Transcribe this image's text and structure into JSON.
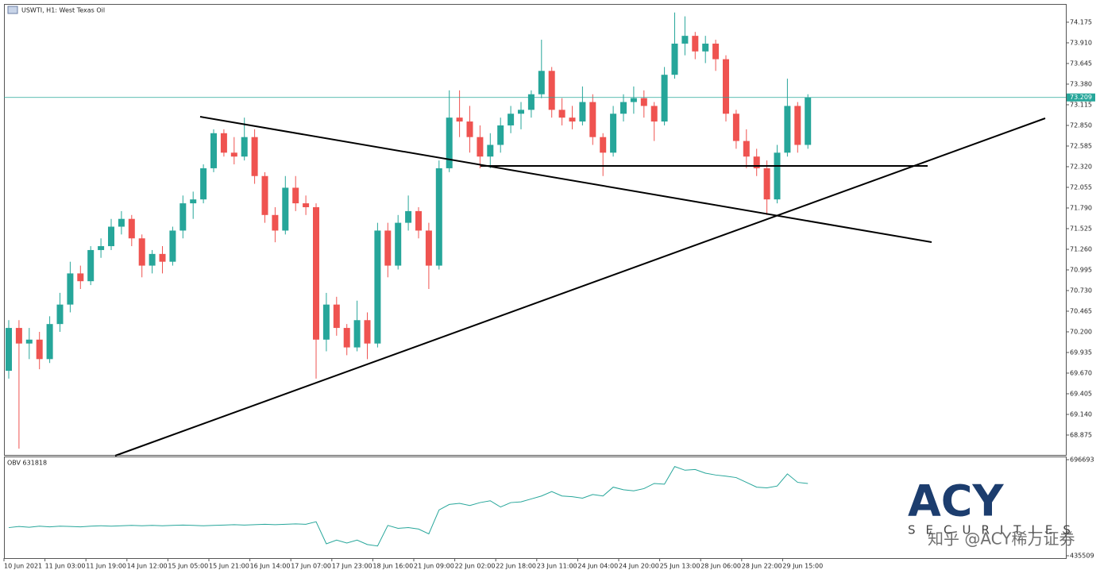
{
  "chart_data": {
    "type": "candlestick",
    "title": "USWTI, H1:  West Texas Oil",
    "categories": [
      "10 Jun 2021",
      null,
      null,
      null,
      "11 Jun 03:00",
      null,
      null,
      null,
      "11 Jun 19:00",
      null,
      null,
      null,
      "14 Jun 12:00",
      null,
      null,
      null,
      "15 Jun 05:00",
      null,
      null,
      null,
      "15 Jun 21:00",
      null,
      null,
      null,
      "16 Jun 14:00",
      null,
      null,
      null,
      "17 Jun 07:00",
      null,
      null,
      null,
      "17 Jun 23:00",
      null,
      null,
      null,
      "18 Jun 16:00",
      null,
      null,
      null,
      "21 Jun 09:00",
      null,
      null,
      null,
      "22 Jun 02:00",
      null,
      null,
      null,
      "22 Jun 18:00",
      null,
      null,
      null,
      "23 Jun 11:00",
      null,
      null,
      null,
      "24 Jun 04:00",
      null,
      null,
      null,
      "24 Jun 20:00",
      null,
      null,
      null,
      "25 Jun 13:00",
      null,
      null,
      null,
      "28 Jun 06:00",
      null,
      null,
      null,
      "28 Jun 22:00",
      null,
      null,
      null,
      "29 Jun 15:00",
      null,
      null
    ],
    "open": [
      69.7,
      70.25,
      70.05,
      70.1,
      69.85,
      70.3,
      70.55,
      70.95,
      70.85,
      71.25,
      71.3,
      71.55,
      71.65,
      71.4,
      71.05,
      71.2,
      71.1,
      71.5,
      71.85,
      71.9,
      72.3,
      72.75,
      72.5,
      72.45,
      72.7,
      72.2,
      71.7,
      71.5,
      72.05,
      71.85,
      71.8,
      70.1,
      70.55,
      70.25,
      70.0,
      70.35,
      70.05,
      71.5,
      71.05,
      71.6,
      71.75,
      71.5,
      71.05,
      72.3,
      72.95,
      72.9,
      72.7,
      72.45,
      72.6,
      72.85,
      73.0,
      73.05,
      73.25,
      73.55,
      73.05,
      72.95,
      72.9,
      73.15,
      72.7,
      72.5,
      73.0,
      73.15,
      73.2,
      73.1,
      72.9,
      73.5,
      73.9,
      74.0,
      73.8,
      73.9,
      73.7,
      73.0,
      72.65,
      72.45,
      72.3,
      71.9,
      72.5,
      73.1,
      72.6
    ],
    "high": [
      70.35,
      70.35,
      70.25,
      70.2,
      70.4,
      70.7,
      71.1,
      71.05,
      71.3,
      71.4,
      71.65,
      71.75,
      71.7,
      71.45,
      71.25,
      71.3,
      71.55,
      71.95,
      72.0,
      72.35,
      72.8,
      72.8,
      72.7,
      72.95,
      72.8,
      72.25,
      71.8,
      72.2,
      72.2,
      71.95,
      71.85,
      70.7,
      70.65,
      70.3,
      70.6,
      70.45,
      71.6,
      71.6,
      71.7,
      71.95,
      71.8,
      71.6,
      72.4,
      73.3,
      73.3,
      73.1,
      72.85,
      72.75,
      72.95,
      73.1,
      73.15,
      73.3,
      73.95,
      73.6,
      73.2,
      73.1,
      73.35,
      73.25,
      72.75,
      73.1,
      73.25,
      73.35,
      73.3,
      73.15,
      73.6,
      74.3,
      74.25,
      74.05,
      74.0,
      73.95,
      73.75,
      73.05,
      72.8,
      72.55,
      72.4,
      72.6,
      73.45,
      73.15,
      73.25
    ],
    "low": [
      69.6,
      68.7,
      69.85,
      69.72,
      69.8,
      70.2,
      70.45,
      70.75,
      70.8,
      71.15,
      71.25,
      71.45,
      71.3,
      70.9,
      70.95,
      70.95,
      71.05,
      71.4,
      71.65,
      71.85,
      72.25,
      72.45,
      72.35,
      72.4,
      72.1,
      71.6,
      71.35,
      71.45,
      71.75,
      71.7,
      69.6,
      69.95,
      70.15,
      69.9,
      69.95,
      69.85,
      70.0,
      70.9,
      71.0,
      71.5,
      71.4,
      70.75,
      71.0,
      72.25,
      72.7,
      72.5,
      72.3,
      72.3,
      72.5,
      72.75,
      72.8,
      72.95,
      73.2,
      72.95,
      72.85,
      72.8,
      72.85,
      72.6,
      72.2,
      72.45,
      72.9,
      73.0,
      72.95,
      72.65,
      72.85,
      73.45,
      73.75,
      73.7,
      73.65,
      73.55,
      72.9,
      72.55,
      72.3,
      72.2,
      71.7,
      71.85,
      72.45,
      72.5,
      72.55
    ],
    "close": [
      70.25,
      70.05,
      70.1,
      69.85,
      70.3,
      70.55,
      70.95,
      70.85,
      71.25,
      71.3,
      71.55,
      71.65,
      71.4,
      71.05,
      71.2,
      71.1,
      71.5,
      71.85,
      71.9,
      72.3,
      72.75,
      72.5,
      72.45,
      72.7,
      72.2,
      71.7,
      71.5,
      72.05,
      71.85,
      71.8,
      70.1,
      70.55,
      70.25,
      70.0,
      70.35,
      70.05,
      71.5,
      71.05,
      71.6,
      71.75,
      71.5,
      71.05,
      72.3,
      72.95,
      72.9,
      72.7,
      72.45,
      72.6,
      72.85,
      73.0,
      73.05,
      73.25,
      73.55,
      73.05,
      72.95,
      72.9,
      73.15,
      72.7,
      72.5,
      73.0,
      73.15,
      73.2,
      73.1,
      72.9,
      73.5,
      73.9,
      74.0,
      73.8,
      73.9,
      73.7,
      73.0,
      72.65,
      72.45,
      72.3,
      71.9,
      72.5,
      73.1,
      72.6,
      73.21
    ],
    "up_color": "#26a69a",
    "down_color": "#ef5350",
    "ylim": [
      68.62,
      74.409
    ],
    "yticks": [
      74.175,
      {
        "value": 73.91,
        "label": "73.910"
      },
      73.645,
      {
        "value": 73.38,
        "label": "73.380"
      },
      73.115,
      {
        "value": 72.85,
        "label": "72.850"
      },
      72.585,
      {
        "value": 72.32,
        "label": "72.320"
      },
      72.055,
      {
        "value": 71.79,
        "label": "71.790"
      },
      71.525,
      {
        "value": 71.26,
        "label": "71.260"
      },
      70.995,
      {
        "value": 70.73,
        "label": "70.730"
      },
      70.465,
      {
        "value": 70.2,
        "label": "70.200"
      },
      69.935,
      {
        "value": 69.67,
        "label": "69.670"
      },
      69.405,
      {
        "value": 69.14,
        "label": "69.140"
      },
      68.875
    ],
    "current_price": 73.209,
    "current_color": "#26a69a",
    "indicator": {
      "title": "OBV 631818",
      "color": "#26a69a",
      "ylim": [
        435509,
        696693
      ],
      "yticks": [
        696693,
        435509
      ],
      "values": [
        512000,
        515000,
        513000,
        516000,
        514000,
        516000,
        515000,
        514000,
        516000,
        517000,
        516000,
        517000,
        518000,
        517000,
        518000,
        517000,
        518000,
        519000,
        518000,
        517000,
        518000,
        519000,
        520000,
        519000,
        520000,
        521000,
        520000,
        521000,
        522000,
        521000,
        528000,
        468000,
        478000,
        470000,
        478000,
        466000,
        462000,
        518000,
        510000,
        512000,
        508000,
        495000,
        560000,
        575000,
        578000,
        572000,
        580000,
        585000,
        568000,
        580000,
        582000,
        590000,
        598000,
        610000,
        598000,
        596000,
        592000,
        602000,
        598000,
        622000,
        615000,
        612000,
        618000,
        632000,
        630000,
        678000,
        668000,
        670000,
        660000,
        655000,
        652000,
        648000,
        635000,
        622000,
        620000,
        625000,
        658000,
        635000,
        631818
      ]
    }
  },
  "watermark": {
    "logo": "ACY",
    "tagline": "SECURITIES",
    "caption": "知乎 @ACY稀万证券"
  }
}
